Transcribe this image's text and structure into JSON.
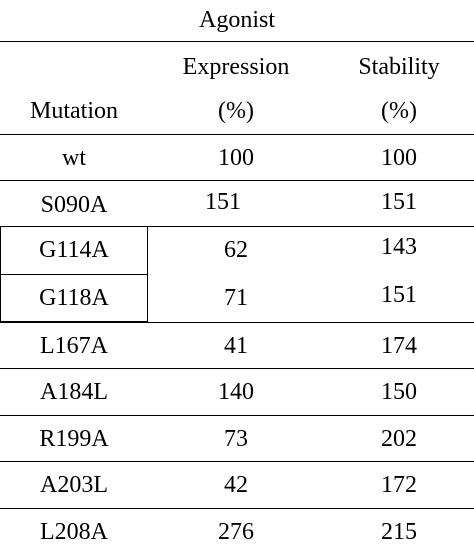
{
  "table": {
    "group_header": "Agonist",
    "headers": {
      "mutation": "Mutation",
      "expression_line1": "Expression",
      "expression_line2": "(%)",
      "stability_line1": "Stability",
      "stability_line2": "(%)"
    },
    "rows": [
      {
        "mutation": "wt",
        "expression": "100",
        "stability": "100"
      },
      {
        "mutation": "S090A",
        "expression": "151",
        "stability": "151"
      },
      {
        "mutation": "G114A",
        "expression": "62",
        "stability": "143"
      },
      {
        "mutation": "G118A",
        "expression": "71",
        "stability": "151"
      },
      {
        "mutation": "L167A",
        "expression": "41",
        "stability": "174"
      },
      {
        "mutation": "A184L",
        "expression": "140",
        "stability": "150"
      },
      {
        "mutation": "R199A",
        "expression": "73",
        "stability": "202"
      },
      {
        "mutation": "A203L",
        "expression": "42",
        "stability": "172"
      },
      {
        "mutation": "L208A",
        "expression": "276",
        "stability": "215"
      }
    ]
  }
}
